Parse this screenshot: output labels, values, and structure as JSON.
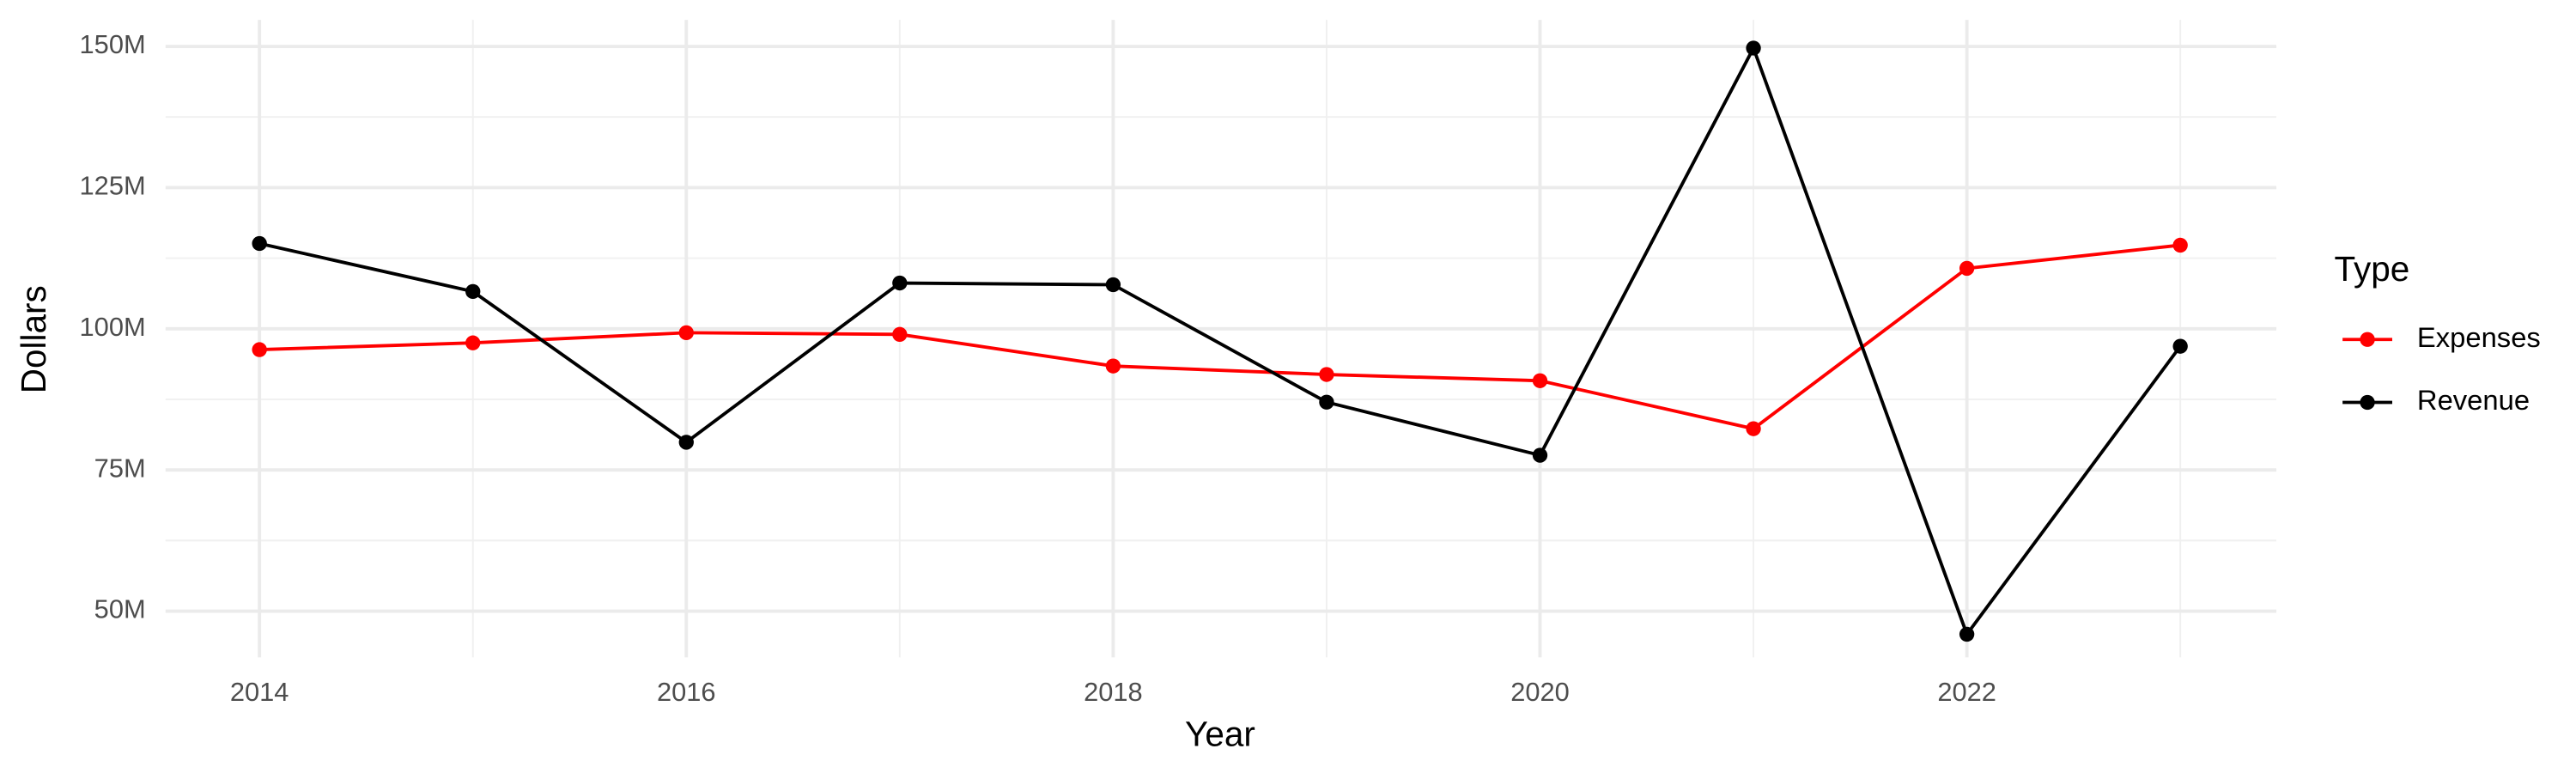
{
  "chart_data": {
    "type": "line",
    "x_label": "Year",
    "y_label": "Dollars",
    "x": [
      2014,
      2015,
      2016,
      2017,
      2018,
      2019,
      2020,
      2021,
      2022,
      2023
    ],
    "series": [
      {
        "name": "Expenses",
        "color": "#ff0000",
        "values": [
          96300000,
          97500000,
          99300000,
          99000000,
          93400000,
          91900000,
          90800000,
          82300000,
          110700000,
          114800000
        ]
      },
      {
        "name": "Revenue",
        "color": "#000000",
        "values": [
          115100000,
          106600000,
          79900000,
          108100000,
          107800000,
          87000000,
          77600000,
          149700000,
          45900000,
          96900000
        ]
      }
    ],
    "xlim": [
      2013.56,
      2023.45
    ],
    "ylim": [
      41800000,
      154700000
    ],
    "xticks": [
      2014,
      2016,
      2018,
      2020,
      2022
    ],
    "yticks": [
      {
        "value": 50000000,
        "label": "50M"
      },
      {
        "value": 75000000,
        "label": "75M"
      },
      {
        "value": 100000000,
        "label": "100M"
      },
      {
        "value": 125000000,
        "label": "125M"
      },
      {
        "value": 150000000,
        "label": "150M"
      }
    ],
    "grid": true,
    "legend_title": "Type",
    "legend_position": "right"
  }
}
